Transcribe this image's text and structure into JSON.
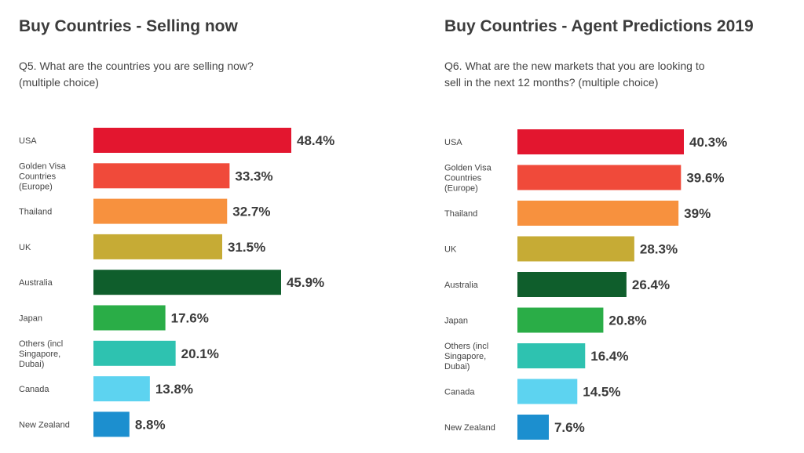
{
  "chart_data": [
    {
      "type": "bar",
      "orientation": "horizontal",
      "title": "Buy Countries - Selling now",
      "subtitle": "Q5. What are the countries you are selling now?\n(multiple choice)",
      "categories": [
        "USA",
        "Golden Visa Countries (Europe)",
        "Thailand",
        "UK",
        "Australia",
        "Japan",
        "Others (incl Singapore, Dubai)",
        "Canada",
        "New Zealand"
      ],
      "category_lines": [
        [
          "USA"
        ],
        [
          "Golden Visa",
          "Countries",
          "(Europe)"
        ],
        [
          "Thailand"
        ],
        [
          "UK"
        ],
        [
          "Australia"
        ],
        [
          "Japan"
        ],
        [
          "Others (incl",
          "Singapore,",
          "Dubai)"
        ],
        [
          "Canada"
        ],
        [
          "New Zealand"
        ]
      ],
      "values": [
        48.4,
        33.3,
        32.7,
        31.5,
        45.9,
        17.6,
        20.1,
        13.8,
        8.8
      ],
      "value_labels": [
        "48.4%",
        "33.3%",
        "32.7%",
        "31.5%",
        "45.9%",
        "17.6%",
        "20.1%",
        "13.8%",
        "8.8%"
      ],
      "colors": [
        "#e3162f",
        "#f04a3a",
        "#f7913e",
        "#c6ab35",
        "#0f5e2c",
        "#2aad47",
        "#2ec2b0",
        "#5dd3f0",
        "#1c8fcf"
      ],
      "xlim": [
        0,
        48.4
      ],
      "grid": false,
      "legend": "none"
    },
    {
      "type": "bar",
      "orientation": "horizontal",
      "title": "Buy  Countries - Agent Predictions 2019",
      "subtitle": "Q6. What are the new markets that you are looking to\nsell in the next 12 months? (multiple choice)",
      "categories": [
        "USA",
        "Golden Visa Countries (Europe)",
        "Thailand",
        "UK",
        "Australia",
        "Japan",
        "Others (incl Singapore, Dubai)",
        "Canada",
        "New Zealand"
      ],
      "category_lines": [
        [
          "USA"
        ],
        [
          "Golden Visa",
          "Countries",
          "(Europe)"
        ],
        [
          "Thailand"
        ],
        [
          "UK"
        ],
        [
          "Australia"
        ],
        [
          "Japan"
        ],
        [
          "Others (incl",
          "Singapore,",
          "Dubai)"
        ],
        [
          "Canada"
        ],
        [
          "New Zealand"
        ]
      ],
      "values": [
        40.3,
        39.6,
        39,
        28.3,
        26.4,
        20.8,
        16.4,
        14.5,
        7.6
      ],
      "value_labels": [
        "40.3%",
        "39.6%",
        "39%",
        "28.3%",
        "26.4%",
        "20.8%",
        "16.4%",
        "14.5%",
        "7.6%"
      ],
      "colors": [
        "#e3162f",
        "#f04a3a",
        "#f7913e",
        "#c6ab35",
        "#0f5e2c",
        "#2aad47",
        "#2ec2b0",
        "#5dd3f0",
        "#1c8fcf"
      ],
      "xlim": [
        0,
        40.3
      ],
      "grid": false,
      "legend": "none"
    }
  ]
}
